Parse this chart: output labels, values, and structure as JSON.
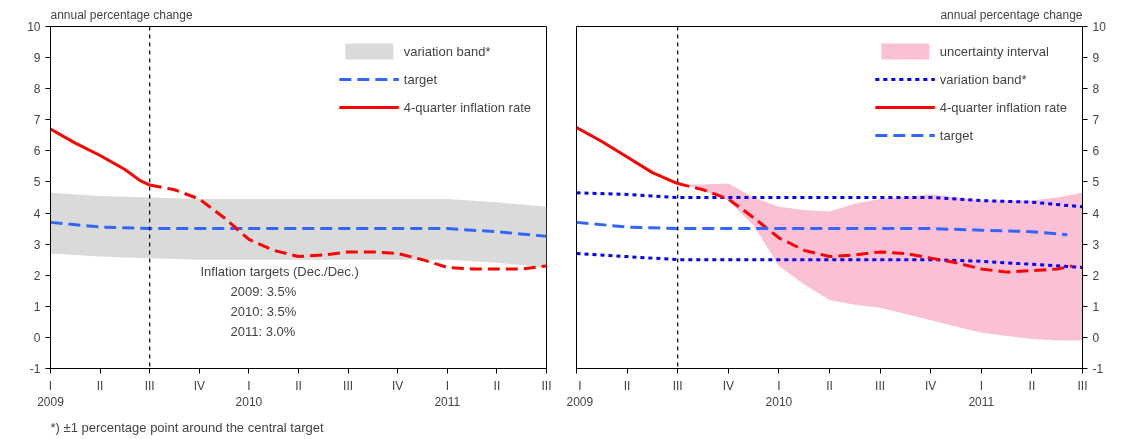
{
  "chart_data": [
    {
      "type": "line",
      "ylabel": "annual percentage change",
      "xlim": [
        "2009-01",
        "2011-07"
      ],
      "ylim": [
        -1,
        10
      ],
      "yticks": [
        -1,
        0,
        1,
        2,
        3,
        4,
        5,
        6,
        7,
        8,
        9,
        10
      ],
      "xticks": [
        {
          "value": "2009-01",
          "label": "I\n2009"
        },
        {
          "value": "2009-04",
          "label": "II"
        },
        {
          "value": "2009-07",
          "label": "III"
        },
        {
          "value": "2009-10",
          "label": "IV"
        },
        {
          "value": "2010-01",
          "label": "I\n2010"
        },
        {
          "value": "2010-04",
          "label": "II"
        },
        {
          "value": "2010-07",
          "label": "III"
        },
        {
          "value": "2010-10",
          "label": "IV"
        },
        {
          "value": "2011-01",
          "label": "I\n2011"
        },
        {
          "value": "2011-04",
          "label": "II"
        },
        {
          "value": "2011-07",
          "label": "III"
        }
      ],
      "grid": false,
      "legend": "top right",
      "series": [
        {
          "name": "variation band*",
          "type": "area",
          "color": "#d4d4d4",
          "x": [
            "2009-01",
            "2009-04",
            "2009-07",
            "2009-10",
            "2010-01",
            "2010-04",
            "2010-07",
            "2010-10",
            "2011-01",
            "2011-04",
            "2011-07"
          ],
          "values": [
            null,
            null,
            null,
            null,
            null,
            null,
            null,
            null,
            null,
            null,
            null
          ],
          "upper": [
            4.65,
            4.55,
            4.5,
            4.45,
            4.45,
            4.45,
            4.45,
            4.45,
            4.45,
            4.35,
            4.2
          ],
          "lower": [
            2.7,
            2.6,
            2.55,
            2.5,
            2.5,
            2.5,
            2.5,
            2.5,
            2.5,
            2.4,
            2.25
          ]
        },
        {
          "name": "target",
          "line_style": "dashed",
          "color": "#3366ff",
          "x": [
            "2009-01",
            "2009-04",
            "2009-07",
            "2009-10",
            "2010-01",
            "2010-04",
            "2010-07",
            "2010-10",
            "2011-01",
            "2011-04",
            "2011-07"
          ],
          "values": [
            3.7,
            3.55,
            3.5,
            3.5,
            3.5,
            3.5,
            3.5,
            3.5,
            3.5,
            3.4,
            3.25
          ]
        },
        {
          "name": "4-quarter inflation rate",
          "line_style": "solid",
          "color": "#ff0000",
          "x": [
            "2009-01",
            "2009-02-16",
            "2009-04",
            "2009-05-16",
            "2009-06-13",
            "2009-07"
          ],
          "values": [
            6.7,
            6.25,
            5.85,
            5.4,
            5.05,
            4.9
          ]
        },
        {
          "line_style": "dashed",
          "color": "#ff0000",
          "x": [
            "2009-07",
            "2009-08-16",
            "2009-10",
            "2009-11-16",
            "2010-01",
            "2010-02-16",
            "2010-04",
            "2010-05-16",
            "2010-07",
            "2010-08-16",
            "2010-10",
            "2010-11-16",
            "2011-01",
            "2011-02-16",
            "2011-04",
            "2011-05-16",
            "2011-07"
          ],
          "values": [
            4.9,
            4.75,
            4.45,
            3.85,
            3.15,
            2.8,
            2.6,
            2.65,
            2.75,
            2.75,
            2.7,
            2.5,
            2.25,
            2.2,
            2.2,
            2.2,
            2.3
          ]
        }
      ],
      "ref_lines": [
        {
          "axis": "x",
          "value": "2009-07",
          "color": "#000000",
          "line_style": "dotted"
        }
      ],
      "annotations": [
        "Inflation targets (Dec./Dec.)",
        "2009: 3.5%",
        "2010: 3.5%",
        "2011: 3.0%",
        "*) ±1 percentage point around the central target"
      ]
    },
    {
      "type": "line",
      "y2label": "annual percentage change",
      "xlim": [
        "2009-01",
        "2011-07"
      ],
      "y2lim": [
        -1,
        10
      ],
      "y2ticks": [
        -1,
        0,
        1,
        2,
        3,
        4,
        5,
        6,
        7,
        8,
        9,
        10
      ],
      "xticks": [
        {
          "value": "2009-01",
          "label": "I\n2009"
        },
        {
          "value": "2009-04",
          "label": "II"
        },
        {
          "value": "2009-07",
          "label": "III"
        },
        {
          "value": "2009-10",
          "label": "IV"
        },
        {
          "value": "2010-01",
          "label": "I\n2010"
        },
        {
          "value": "2010-04",
          "label": "II"
        },
        {
          "value": "2010-07",
          "label": "III"
        },
        {
          "value": "2010-10",
          "label": "IV"
        },
        {
          "value": "2011-01",
          "label": "I\n2011"
        },
        {
          "value": "2011-04",
          "label": "II"
        },
        {
          "value": "2011-07",
          "label": "III"
        }
      ],
      "grid": false,
      "legend": "top right",
      "series": [
        {
          "name": "uncertainty interval",
          "type": "area",
          "axis": "y2",
          "color": "#f9b6cf",
          "x": [
            "2009-07-19",
            "2009-10",
            "2009-11-16",
            "2010-01",
            "2010-02-16",
            "2010-04",
            "2010-05-16",
            "2010-07",
            "2010-10",
            "2010-11-16",
            "2011-01",
            "2011-04",
            "2011-05-16",
            "2011-07"
          ],
          "values": [
            null,
            null,
            null,
            null,
            null,
            null,
            null,
            null,
            null,
            null,
            null,
            null,
            null,
            null
          ],
          "upper": [
            4.9,
            4.95,
            4.5,
            4.2,
            4.1,
            4.05,
            4.3,
            4.45,
            4.6,
            4.5,
            4.4,
            4.4,
            4.5,
            4.65
          ],
          "lower": [
            4.9,
            4.4,
            3.6,
            2.3,
            1.7,
            1.2,
            1.05,
            0.95,
            0.55,
            0.35,
            0.15,
            -0.05,
            -0.1,
            -0.1
          ]
        },
        {
          "name": "variation band*",
          "axis": "y2",
          "line_style": "dotted",
          "color": "#0000ff",
          "x": [
            "2009-01",
            "2009-04",
            "2009-07",
            "2009-10",
            "2010-01",
            "2010-04",
            "2010-07",
            "2010-10",
            "2011-01",
            "2011-04",
            "2011-07"
          ],
          "values": [
            4.65,
            4.6,
            4.5,
            4.5,
            4.5,
            4.5,
            4.5,
            4.5,
            4.4,
            4.35,
            4.2
          ]
        },
        {
          "axis": "y2",
          "line_style": "dotted",
          "color": "#0000ff",
          "x": [
            "2009-01",
            "2009-04",
            "2009-07",
            "2009-10",
            "2010-01",
            "2010-04",
            "2010-07",
            "2010-10",
            "2011-01",
            "2011-04",
            "2011-07"
          ],
          "values": [
            2.7,
            2.6,
            2.5,
            2.5,
            2.5,
            2.5,
            2.5,
            2.5,
            2.45,
            2.35,
            2.25
          ]
        },
        {
          "name": "4-quarter inflation rate",
          "axis": "y2",
          "line_style": "solid",
          "color": "#ff0000",
          "x": [
            "2009-01",
            "2009-02-16",
            "2009-04",
            "2009-05-16",
            "2009-07"
          ],
          "values": [
            6.75,
            6.3,
            5.8,
            5.3,
            4.95
          ]
        },
        {
          "axis": "y2",
          "line_style": "dashed",
          "color": "#ff0000",
          "x": [
            "2009-07",
            "2009-08-16",
            "2009-10",
            "2009-11-16",
            "2010-01",
            "2010-02-16",
            "2010-04",
            "2010-05-16",
            "2010-07",
            "2010-08-16",
            "2010-10",
            "2010-11-16",
            "2011-01",
            "2011-02-16",
            "2011-04",
            "2011-05-16",
            "2011-06-13"
          ],
          "values": [
            4.95,
            4.75,
            4.45,
            3.85,
            3.2,
            2.8,
            2.6,
            2.65,
            2.75,
            2.7,
            2.55,
            2.4,
            2.2,
            2.1,
            2.15,
            2.2,
            2.3
          ]
        },
        {
          "name": "target",
          "axis": "y2",
          "line_style": "dashed",
          "color": "#3366ff",
          "x": [
            "2009-01",
            "2009-04",
            "2009-07",
            "2009-10",
            "2010-01",
            "2010-04",
            "2010-07",
            "2010-10",
            "2011-01",
            "2011-04",
            "2011-06-04"
          ],
          "values": [
            3.7,
            3.55,
            3.5,
            3.5,
            3.5,
            3.5,
            3.5,
            3.5,
            3.45,
            3.4,
            3.3
          ]
        }
      ],
      "ref_lines": [
        {
          "axis": "x",
          "value": "2009-07",
          "color": "#000000",
          "line_style": "dotted"
        }
      ]
    }
  ]
}
